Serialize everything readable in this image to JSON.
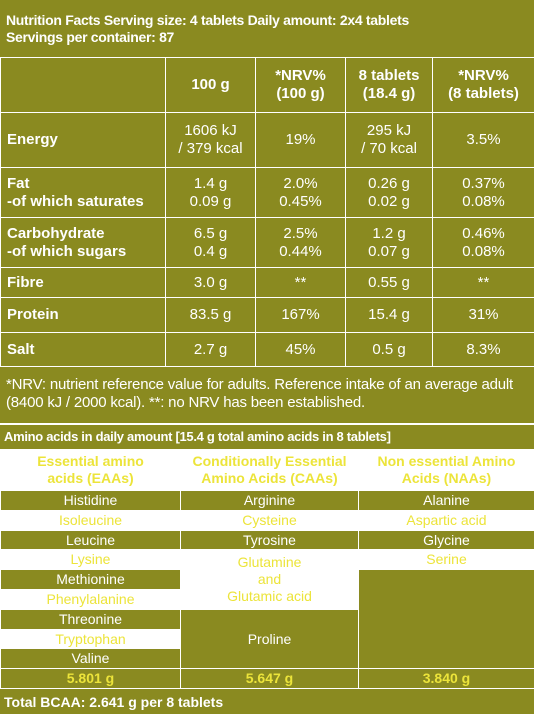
{
  "header": {
    "line1": "Nutrition Facts  Serving size: 4 tablets  Daily amount: 2x4 tablets",
    "line2": "Servings per container: 87"
  },
  "nutrition": {
    "columns": [
      [
        "100 g"
      ],
      [
        "*NRV%",
        "(100 g)"
      ],
      [
        "8 tablets",
        "(18.4 g)"
      ],
      [
        "*NRV%",
        "(8 tablets)"
      ]
    ],
    "rows": [
      {
        "label": [
          "Energy"
        ],
        "cells": [
          [
            "1606 kJ",
            "/ 379 kcal"
          ],
          [
            "19%"
          ],
          [
            "295 kJ",
            "/ 70 kcal"
          ],
          [
            "3.5%"
          ]
        ]
      },
      {
        "label": [
          "Fat",
          "-of which saturates"
        ],
        "cells": [
          [
            "1.4 g",
            "0.09 g"
          ],
          [
            "2.0%",
            "0.45%"
          ],
          [
            "0.26 g",
            "0.02 g"
          ],
          [
            "0.37%",
            "0.08%"
          ]
        ]
      },
      {
        "label": [
          "Carbohydrate",
          "-of which sugars"
        ],
        "cells": [
          [
            "6.5 g",
            "0.4 g"
          ],
          [
            "2.5%",
            "0.44%"
          ],
          [
            "1.2 g",
            "0.07 g"
          ],
          [
            "0.46%",
            "0.08%"
          ]
        ]
      },
      {
        "label": [
          "Fibre"
        ],
        "cells": [
          [
            "3.0 g"
          ],
          [
            "**"
          ],
          [
            "0.55 g"
          ],
          [
            "**"
          ]
        ]
      },
      {
        "label": [
          "Protein"
        ],
        "cells": [
          [
            "83.5 g"
          ],
          [
            "167%"
          ],
          [
            "15.4 g"
          ],
          [
            "31%"
          ]
        ]
      },
      {
        "label": [
          "Salt"
        ],
        "cells": [
          [
            "2.7 g"
          ],
          [
            "45%"
          ],
          [
            "0.5 g"
          ],
          [
            "8.3%"
          ]
        ]
      }
    ]
  },
  "footnote": "*NRV: nutrient reference value for adults. Reference intake of an average adult (8400 kJ / 2000 kcal). **: no NRV has been established.",
  "amino": {
    "title": "Amino acids in daily amount [15.4 g total amino acids in 8 tablets]",
    "columns": [
      {
        "heading": [
          "Essential amino",
          "acids (EAAs)"
        ],
        "items": [
          [
            "Histidine"
          ],
          [
            "Isoleucine"
          ],
          [
            "Leucine"
          ],
          [
            "Lysine"
          ],
          [
            "Methionine"
          ],
          [
            "Phenylalanine"
          ],
          [
            "Threonine"
          ],
          [
            "Tryptophan"
          ],
          [
            "Valine"
          ]
        ],
        "total": "5.801 g"
      },
      {
        "heading": [
          "Conditionally Essential",
          "Amino Acids (CAAs)"
        ],
        "items": [
          [
            "Arginine"
          ],
          [
            "Cysteine"
          ],
          [
            "Tyrosine"
          ],
          [
            "Glutamine",
            "and",
            "Glutamic acid"
          ],
          [
            "Proline"
          ]
        ],
        "total": "5.647 g"
      },
      {
        "heading": [
          "Non essential Amino",
          "Acids (NAAs)"
        ],
        "items": [
          [
            "Alanine"
          ],
          [
            "Aspartic acid"
          ],
          [
            "Glycine"
          ],
          [
            "Serine"
          ]
        ],
        "total": "3.840 g"
      }
    ]
  },
  "total_bcaa": "Total BCAA: 2.641 g per 8 tablets"
}
